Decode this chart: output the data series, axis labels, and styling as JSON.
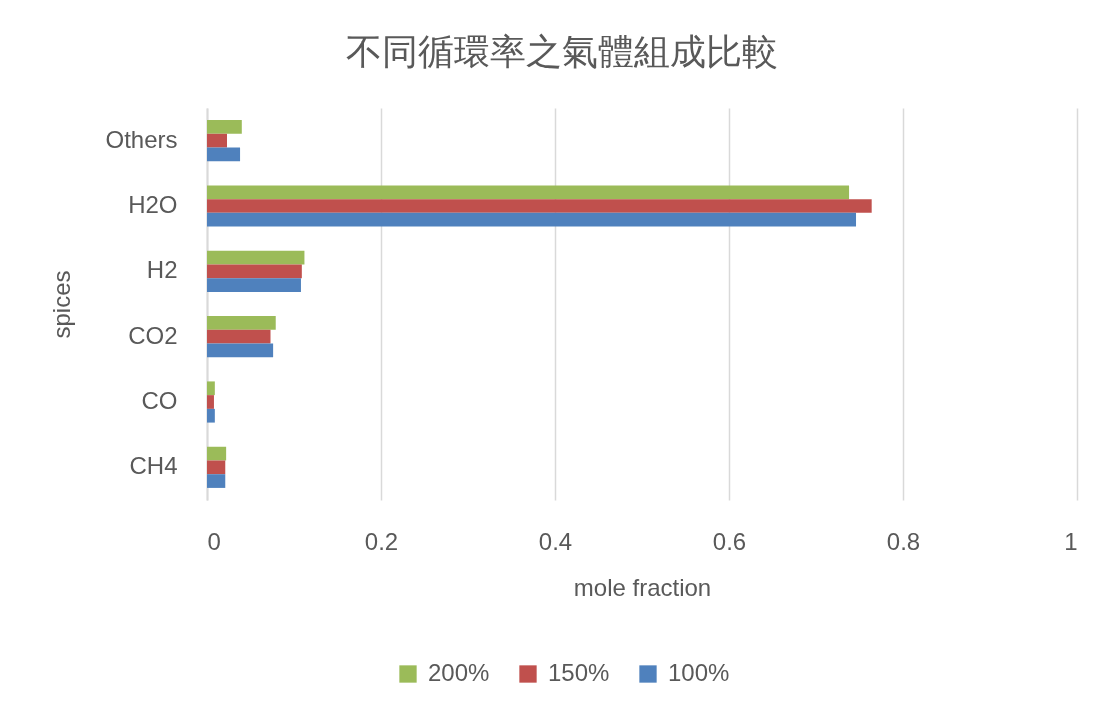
{
  "chart_data": {
    "type": "bar",
    "orientation": "horizontal",
    "title": "不同循環率之氣體組成比較",
    "xlabel": "mole fraction",
    "ylabel": "spices",
    "categories": [
      "Others",
      "H2O",
      "H2",
      "CO2",
      "CO",
      "CH4"
    ],
    "series": [
      {
        "name": "200%",
        "color": "#9bbb59",
        "values": [
          0.04,
          0.738,
          0.112,
          0.079,
          0.009,
          0.022
        ]
      },
      {
        "name": "150%",
        "color": "#c0504d",
        "values": [
          0.023,
          0.764,
          0.109,
          0.073,
          0.008,
          0.021
        ]
      },
      {
        "name": "100%",
        "color": "#4f81bd",
        "values": [
          0.038,
          0.746,
          0.108,
          0.076,
          0.009,
          0.021
        ]
      }
    ],
    "xlim": [
      0,
      1
    ],
    "xticks": [
      0,
      0.2,
      0.4,
      0.6,
      0.8,
      1
    ],
    "grid": "x",
    "legend": "bottom"
  }
}
